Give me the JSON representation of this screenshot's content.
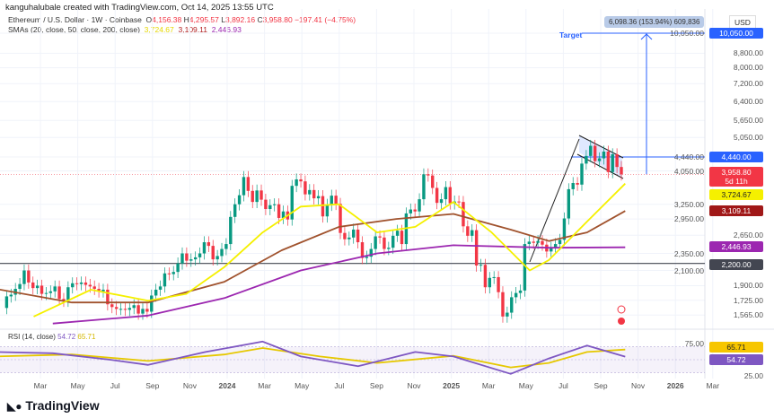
{
  "header": {
    "credit": "kanguhalubale created with TradingView.com, Oct 14, 2025 13:55 UTC",
    "symbol": "Ethereum / U.S. Dollar · 1W · Coinbase",
    "o_label": "O",
    "o": "4,156.38",
    "h_label": "H",
    "h": "4,295.57",
    "l_label": "L",
    "l": "3,892.16",
    "c_label": "C",
    "c": "3,958.80",
    "change": "−197.41 (−4.75%)",
    "sma_label": "SMAs (20, close, 50, close, 200, close)",
    "sma20": "3,724.67",
    "sma50": "3,109.11",
    "sma200": "2,446.93"
  },
  "currency": "USD",
  "measure_label": "6,098.36 (153.94%) 609,836",
  "target_label": "Target",
  "tags": {
    "target": "10,050.00",
    "resistance": "4,440.00",
    "price": "3,958.80",
    "countdown": "5d 11h",
    "sma20": "3,724.67",
    "sma50": "3,109.11",
    "sma200": "2,446.93",
    "support": "2,200.00",
    "rsi_ma": "65.71",
    "rsi": "54.72"
  },
  "rsi_label": "RSI (14, close)",
  "rsi_value": "54.72",
  "rsi_ma_value": "65.71",
  "brand": "TradingView",
  "colors": {
    "up": "#089981",
    "down": "#f23645",
    "sma20": "#f5f000",
    "sma50": "#a0522d",
    "sma200": "#9c27b0",
    "blue": "#2962ff",
    "rsi": "#7e57c2"
  },
  "chart_data": {
    "type": "candlestick",
    "scale": "log",
    "interval": "1W",
    "grid": true,
    "x_ticks": [
      "Mar",
      "May",
      "Jul",
      "Sep",
      "Nov",
      "2024",
      "Mar",
      "May",
      "Jul",
      "Sep",
      "Nov",
      "2025",
      "Mar",
      "May",
      "Jul",
      "Sep",
      "Nov",
      "2026",
      "Mar"
    ],
    "y_ticks": [
      "10,050.00",
      "8,800.00",
      "8,000.00",
      "7,200.00",
      "6,400.00",
      "5,650.00",
      "5,050.00",
      "4,440.00",
      "4,050.00",
      "3,250.00",
      "2,950.00",
      "2,650.00",
      "2,350.00",
      "2,100.00",
      "1,900.00",
      "1,725.00",
      "1,565.00"
    ],
    "weekly_closes_from": "2023-01",
    "closes": [
      1250,
      1410,
      1550,
      1600,
      1630,
      1510,
      1700,
      1640,
      1560,
      1430,
      1640,
      1770,
      1790,
      1860,
      1920,
      2100,
      1940,
      1870,
      1900,
      1800,
      1810,
      1830,
      1890,
      1740,
      1720,
      1880,
      1930,
      1920,
      1940,
      1910,
      1890,
      1860,
      1830,
      1850,
      1680,
      1650,
      1630,
      1630,
      1620,
      1640,
      1670,
      1580,
      1630,
      1600,
      1780,
      1850,
      1890,
      2060,
      2050,
      2080,
      2200,
      2350,
      2240,
      2260,
      2290,
      2350,
      2530,
      2470,
      2260,
      2310,
      2420,
      2500,
      2990,
      3250,
      3450,
      3890,
      3550,
      3300,
      3560,
      3350,
      3150,
      3230,
      3250,
      2970,
      3100,
      2940,
      3670,
      3830,
      3780,
      3470,
      3570,
      3380,
      3430,
      3000,
      3240,
      3440,
      3260,
      2690,
      2580,
      2610,
      2750,
      2530,
      2280,
      2300,
      2420,
      2630,
      2610,
      2420,
      2440,
      2640,
      2730,
      2500,
      3060,
      3140,
      3100,
      3360,
      3960,
      3930,
      3620,
      3280,
      3360,
      3640,
      3270,
      3310,
      3300,
      2810,
      2640,
      2740,
      2170,
      2180,
      1880,
      2000,
      2010,
      1820,
      1550,
      1590,
      1760,
      1810,
      1840,
      2500,
      2540,
      2520,
      2550,
      2490,
      2380,
      2440,
      2500,
      2570,
      2960,
      3590,
      3740,
      3700,
      4250,
      4470,
      4780,
      4320,
      4400,
      4600,
      4020,
      4520,
      4156.38,
      3958.8
    ],
    "sma20": [
      [
        "2023-03",
        1550
      ],
      [
        "2023-06",
        1850
      ],
      [
        "2023-09",
        1720
      ],
      [
        "2023-11",
        1800
      ],
      [
        "2024-01",
        2150
      ],
      [
        "2024-03",
        2700
      ],
      [
        "2024-05",
        3200
      ],
      [
        "2024-07",
        3250
      ],
      [
        "2024-09",
        2700
      ],
      [
        "2024-11",
        2800
      ],
      [
        "2025-01",
        3300
      ],
      [
        "2025-03",
        2700
      ],
      [
        "2025-05",
        2100
      ],
      [
        "2025-06",
        2250
      ],
      [
        "2025-08",
        2900
      ],
      [
        "2025-10",
        3724.67
      ]
    ],
    "sma50": [
      [
        "2023-01",
        1860
      ],
      [
        "2023-05",
        1700
      ],
      [
        "2023-09",
        1700
      ],
      [
        "2024-01",
        1950
      ],
      [
        "2024-04",
        2400
      ],
      [
        "2024-07",
        2800
      ],
      [
        "2024-10",
        2950
      ],
      [
        "2025-01",
        3050
      ],
      [
        "2025-04",
        2750
      ],
      [
        "2025-06",
        2550
      ],
      [
        "2025-08",
        2700
      ],
      [
        "2025-10",
        3109.11
      ]
    ],
    "sma200": [
      [
        "2023-04",
        1480
      ],
      [
        "2023-09",
        1560
      ],
      [
        "2024-01",
        1750
      ],
      [
        "2024-05",
        2100
      ],
      [
        "2024-09",
        2350
      ],
      [
        "2025-01",
        2480
      ],
      [
        "2025-06",
        2440
      ],
      [
        "2025-10",
        2446.93
      ]
    ],
    "levels": {
      "target": 10050,
      "resistance": 4440,
      "support": 2200
    },
    "rsi": [
      [
        "2023-01",
        62
      ],
      [
        "2023-04",
        60
      ],
      [
        "2023-07",
        50
      ],
      [
        "2023-09",
        42
      ],
      [
        "2023-12",
        62
      ],
      [
        "2024-03",
        78
      ],
      [
        "2024-05",
        55
      ],
      [
        "2024-08",
        40
      ],
      [
        "2024-11",
        62
      ],
      [
        "2025-01",
        55
      ],
      [
        "2025-04",
        28
      ],
      [
        "2025-06",
        52
      ],
      [
        "2025-08",
        72
      ],
      [
        "2025-10",
        54.72
      ]
    ],
    "rsi_ma": [
      [
        "2023-01",
        55
      ],
      [
        "2023-05",
        58
      ],
      [
        "2023-09",
        48
      ],
      [
        "2024-01",
        58
      ],
      [
        "2024-03",
        68
      ],
      [
        "2024-06",
        55
      ],
      [
        "2024-09",
        45
      ],
      [
        "2025-01",
        56
      ],
      [
        "2025-04",
        38
      ],
      [
        "2025-06",
        45
      ],
      [
        "2025-08",
        62
      ],
      [
        "2025-10",
        65.71
      ]
    ],
    "rsi_ticks": [
      "75.00",
      "25.00"
    ]
  }
}
